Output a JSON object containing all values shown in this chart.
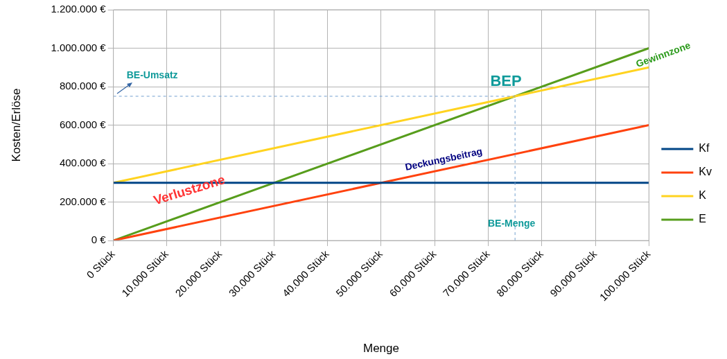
{
  "chart_data": {
    "type": "line",
    "xlabel": "Menge",
    "ylabel": "Kosten/Erlöse",
    "x": [
      0,
      100000
    ],
    "series": [
      {
        "name": "Kf",
        "color": "#004586",
        "values": [
          300000,
          300000
        ]
      },
      {
        "name": "Kv",
        "color": "#ff420e",
        "values": [
          0,
          600000
        ]
      },
      {
        "name": "K",
        "color": "#ffd320",
        "values": [
          300000,
          900000
        ]
      },
      {
        "name": "E",
        "color": "#579d1c",
        "values": [
          0,
          1000000
        ]
      }
    ],
    "xlim": [
      0,
      100000
    ],
    "xticks": [
      {
        "value": 0,
        "label": "0 Stück"
      },
      {
        "value": 10000,
        "label": "10.000 Stück"
      },
      {
        "value": 20000,
        "label": "20.000 Stück"
      },
      {
        "value": 30000,
        "label": "30.000 Stück"
      },
      {
        "value": 40000,
        "label": "40.000 Stück"
      },
      {
        "value": 50000,
        "label": "50.000 Stück"
      },
      {
        "value": 60000,
        "label": "60.000 Stück"
      },
      {
        "value": 70000,
        "label": "70.000 Stück"
      },
      {
        "value": 80000,
        "label": "80.000 Stück"
      },
      {
        "value": 90000,
        "label": "90.000 Stück"
      },
      {
        "value": 100000,
        "label": "100.000 Stück"
      }
    ],
    "ylim": [
      0,
      1200000
    ],
    "yticks": [
      {
        "value": 0,
        "label": "0 €"
      },
      {
        "value": 200000,
        "label": "200.000 €"
      },
      {
        "value": 400000,
        "label": "400.000 €"
      },
      {
        "value": 600000,
        "label": "600.000 €"
      },
      {
        "value": 800000,
        "label": "800.000 €"
      },
      {
        "value": 1000000,
        "label": "1.000.000 €"
      },
      {
        "value": 1200000,
        "label": "1.200.000 €"
      }
    ],
    "ref_lines": [
      {
        "axis": "y",
        "value": 750000,
        "label": "BE-Umsatz",
        "color": "#729fcf",
        "line_style": "dashed"
      },
      {
        "axis": "x",
        "value": 75000,
        "label": "BE-Menge",
        "color": "#729fcf",
        "line_style": "dashed"
      }
    ],
    "annotations": [
      "BEP",
      "Gewinnzone",
      "Deckungsbeitrag",
      "Verlustzone"
    ],
    "grid": true,
    "legend": "right",
    "marker": "none",
    "line_style": "solid"
  }
}
